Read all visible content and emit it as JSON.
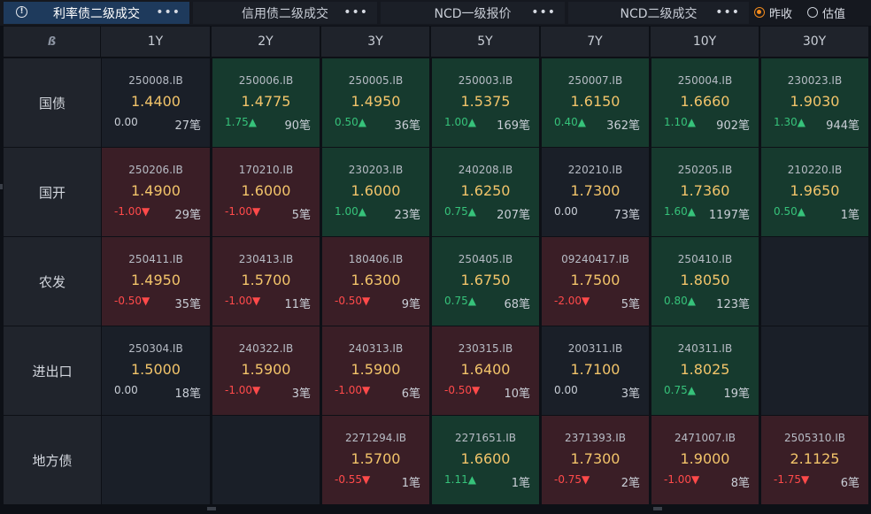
{
  "tabs": [
    {
      "label": "利率债二级成交",
      "active": true,
      "info_icon": "info-icon",
      "more": "•••"
    },
    {
      "label": "信用债二级成交",
      "active": false,
      "more": "•••"
    },
    {
      "label": "NCD一级报价",
      "active": false,
      "more": "•••"
    },
    {
      "label": "NCD二级成交",
      "active": false,
      "more": "•••"
    }
  ],
  "options": [
    {
      "label": "昨收",
      "checked": true
    },
    {
      "label": "估值",
      "checked": false
    }
  ],
  "logo_icon": "app-logo-icon",
  "tenors": [
    "1Y",
    "2Y",
    "3Y",
    "5Y",
    "7Y",
    "10Y",
    "30Y"
  ],
  "rows": [
    {
      "label": "国债",
      "cells": [
        {
          "code": "250008.IB",
          "price": "1.4400",
          "change": "0.00",
          "dir": "flat",
          "count": "27笔",
          "tone": "neutral"
        },
        {
          "code": "250006.IB",
          "price": "1.4775",
          "change": "1.75▲",
          "dir": "up",
          "count": "90笔",
          "tone": "green"
        },
        {
          "code": "250005.IB",
          "price": "1.4950",
          "change": "0.50▲",
          "dir": "up",
          "count": "36笔",
          "tone": "green"
        },
        {
          "code": "250003.IB",
          "price": "1.5375",
          "change": "1.00▲",
          "dir": "up",
          "count": "169笔",
          "tone": "green"
        },
        {
          "code": "250007.IB",
          "price": "1.6150",
          "change": "0.40▲",
          "dir": "up",
          "count": "362笔",
          "tone": "green"
        },
        {
          "code": "250004.IB",
          "price": "1.6660",
          "change": "1.10▲",
          "dir": "up",
          "count": "902笔",
          "tone": "green"
        },
        {
          "code": "230023.IB",
          "price": "1.9030",
          "change": "1.30▲",
          "dir": "up",
          "count": "944笔",
          "tone": "green"
        }
      ]
    },
    {
      "label": "国开",
      "cells": [
        {
          "code": "250206.IB",
          "price": "1.4900",
          "change": "-1.00▼",
          "dir": "down",
          "count": "29笔",
          "tone": "red"
        },
        {
          "code": "170210.IB",
          "price": "1.6000",
          "change": "-1.00▼",
          "dir": "down",
          "count": "5笔",
          "tone": "red"
        },
        {
          "code": "230203.IB",
          "price": "1.6000",
          "change": "1.00▲",
          "dir": "up",
          "count": "23笔",
          "tone": "green"
        },
        {
          "code": "240208.IB",
          "price": "1.6250",
          "change": "0.75▲",
          "dir": "up",
          "count": "207笔",
          "tone": "green"
        },
        {
          "code": "220210.IB",
          "price": "1.7300",
          "change": "0.00",
          "dir": "flat",
          "count": "73笔",
          "tone": "neutral"
        },
        {
          "code": "250205.IB",
          "price": "1.7360",
          "change": "1.60▲",
          "dir": "up",
          "count": "1197笔",
          "tone": "green"
        },
        {
          "code": "210220.IB",
          "price": "1.9650",
          "change": "0.50▲",
          "dir": "up",
          "count": "1笔",
          "tone": "green"
        }
      ]
    },
    {
      "label": "农发",
      "cells": [
        {
          "code": "250411.IB",
          "price": "1.4950",
          "change": "-0.50▼",
          "dir": "down",
          "count": "35笔",
          "tone": "red"
        },
        {
          "code": "230413.IB",
          "price": "1.5700",
          "change": "-1.00▼",
          "dir": "down",
          "count": "11笔",
          "tone": "red"
        },
        {
          "code": "180406.IB",
          "price": "1.6300",
          "change": "-0.50▼",
          "dir": "down",
          "count": "9笔",
          "tone": "red"
        },
        {
          "code": "250405.IB",
          "price": "1.6750",
          "change": "0.75▲",
          "dir": "up",
          "count": "68笔",
          "tone": "green"
        },
        {
          "code": "09240417.IB",
          "price": "1.7500",
          "change": "-2.00▼",
          "dir": "down",
          "count": "5笔",
          "tone": "red"
        },
        {
          "code": "250410.IB",
          "price": "1.8050",
          "change": "0.80▲",
          "dir": "up",
          "count": "123笔",
          "tone": "green"
        },
        null
      ]
    },
    {
      "label": "进出口",
      "cells": [
        {
          "code": "250304.IB",
          "price": "1.5000",
          "change": "0.00",
          "dir": "flat",
          "count": "18笔",
          "tone": "neutral"
        },
        {
          "code": "240322.IB",
          "price": "1.5900",
          "change": "-1.00▼",
          "dir": "down",
          "count": "3笔",
          "tone": "red"
        },
        {
          "code": "240313.IB",
          "price": "1.5900",
          "change": "-1.00▼",
          "dir": "down",
          "count": "6笔",
          "tone": "red"
        },
        {
          "code": "230315.IB",
          "price": "1.6400",
          "change": "-0.50▼",
          "dir": "down",
          "count": "10笔",
          "tone": "red"
        },
        {
          "code": "200311.IB",
          "price": "1.7100",
          "change": "0.00",
          "dir": "flat",
          "count": "3笔",
          "tone": "neutral"
        },
        {
          "code": "240311.IB",
          "price": "1.8025",
          "change": "0.75▲",
          "dir": "up",
          "count": "19笔",
          "tone": "green"
        },
        null
      ]
    },
    {
      "label": "地方债",
      "cells": [
        null,
        null,
        {
          "code": "2271294.IB",
          "price": "1.5700",
          "change": "-0.55▼",
          "dir": "down",
          "count": "1笔",
          "tone": "red"
        },
        {
          "code": "2271651.IB",
          "price": "1.6600",
          "change": "1.11▲",
          "dir": "up",
          "count": "1笔",
          "tone": "green"
        },
        {
          "code": "2371393.IB",
          "price": "1.7300",
          "change": "-0.75▼",
          "dir": "down",
          "count": "2笔",
          "tone": "red"
        },
        {
          "code": "2471007.IB",
          "price": "1.9000",
          "change": "-1.00▼",
          "dir": "down",
          "count": "8笔",
          "tone": "red"
        },
        {
          "code": "2505310.IB",
          "price": "2.1125",
          "change": "-1.75▼",
          "dir": "down",
          "count": "6笔",
          "tone": "red"
        }
      ]
    }
  ],
  "colors": {
    "up": "#36c27a",
    "down": "#ff4a4a",
    "price": "#f2c46a",
    "active_tab": "#1e3a5c",
    "radio_checked": "#f28a1c"
  }
}
